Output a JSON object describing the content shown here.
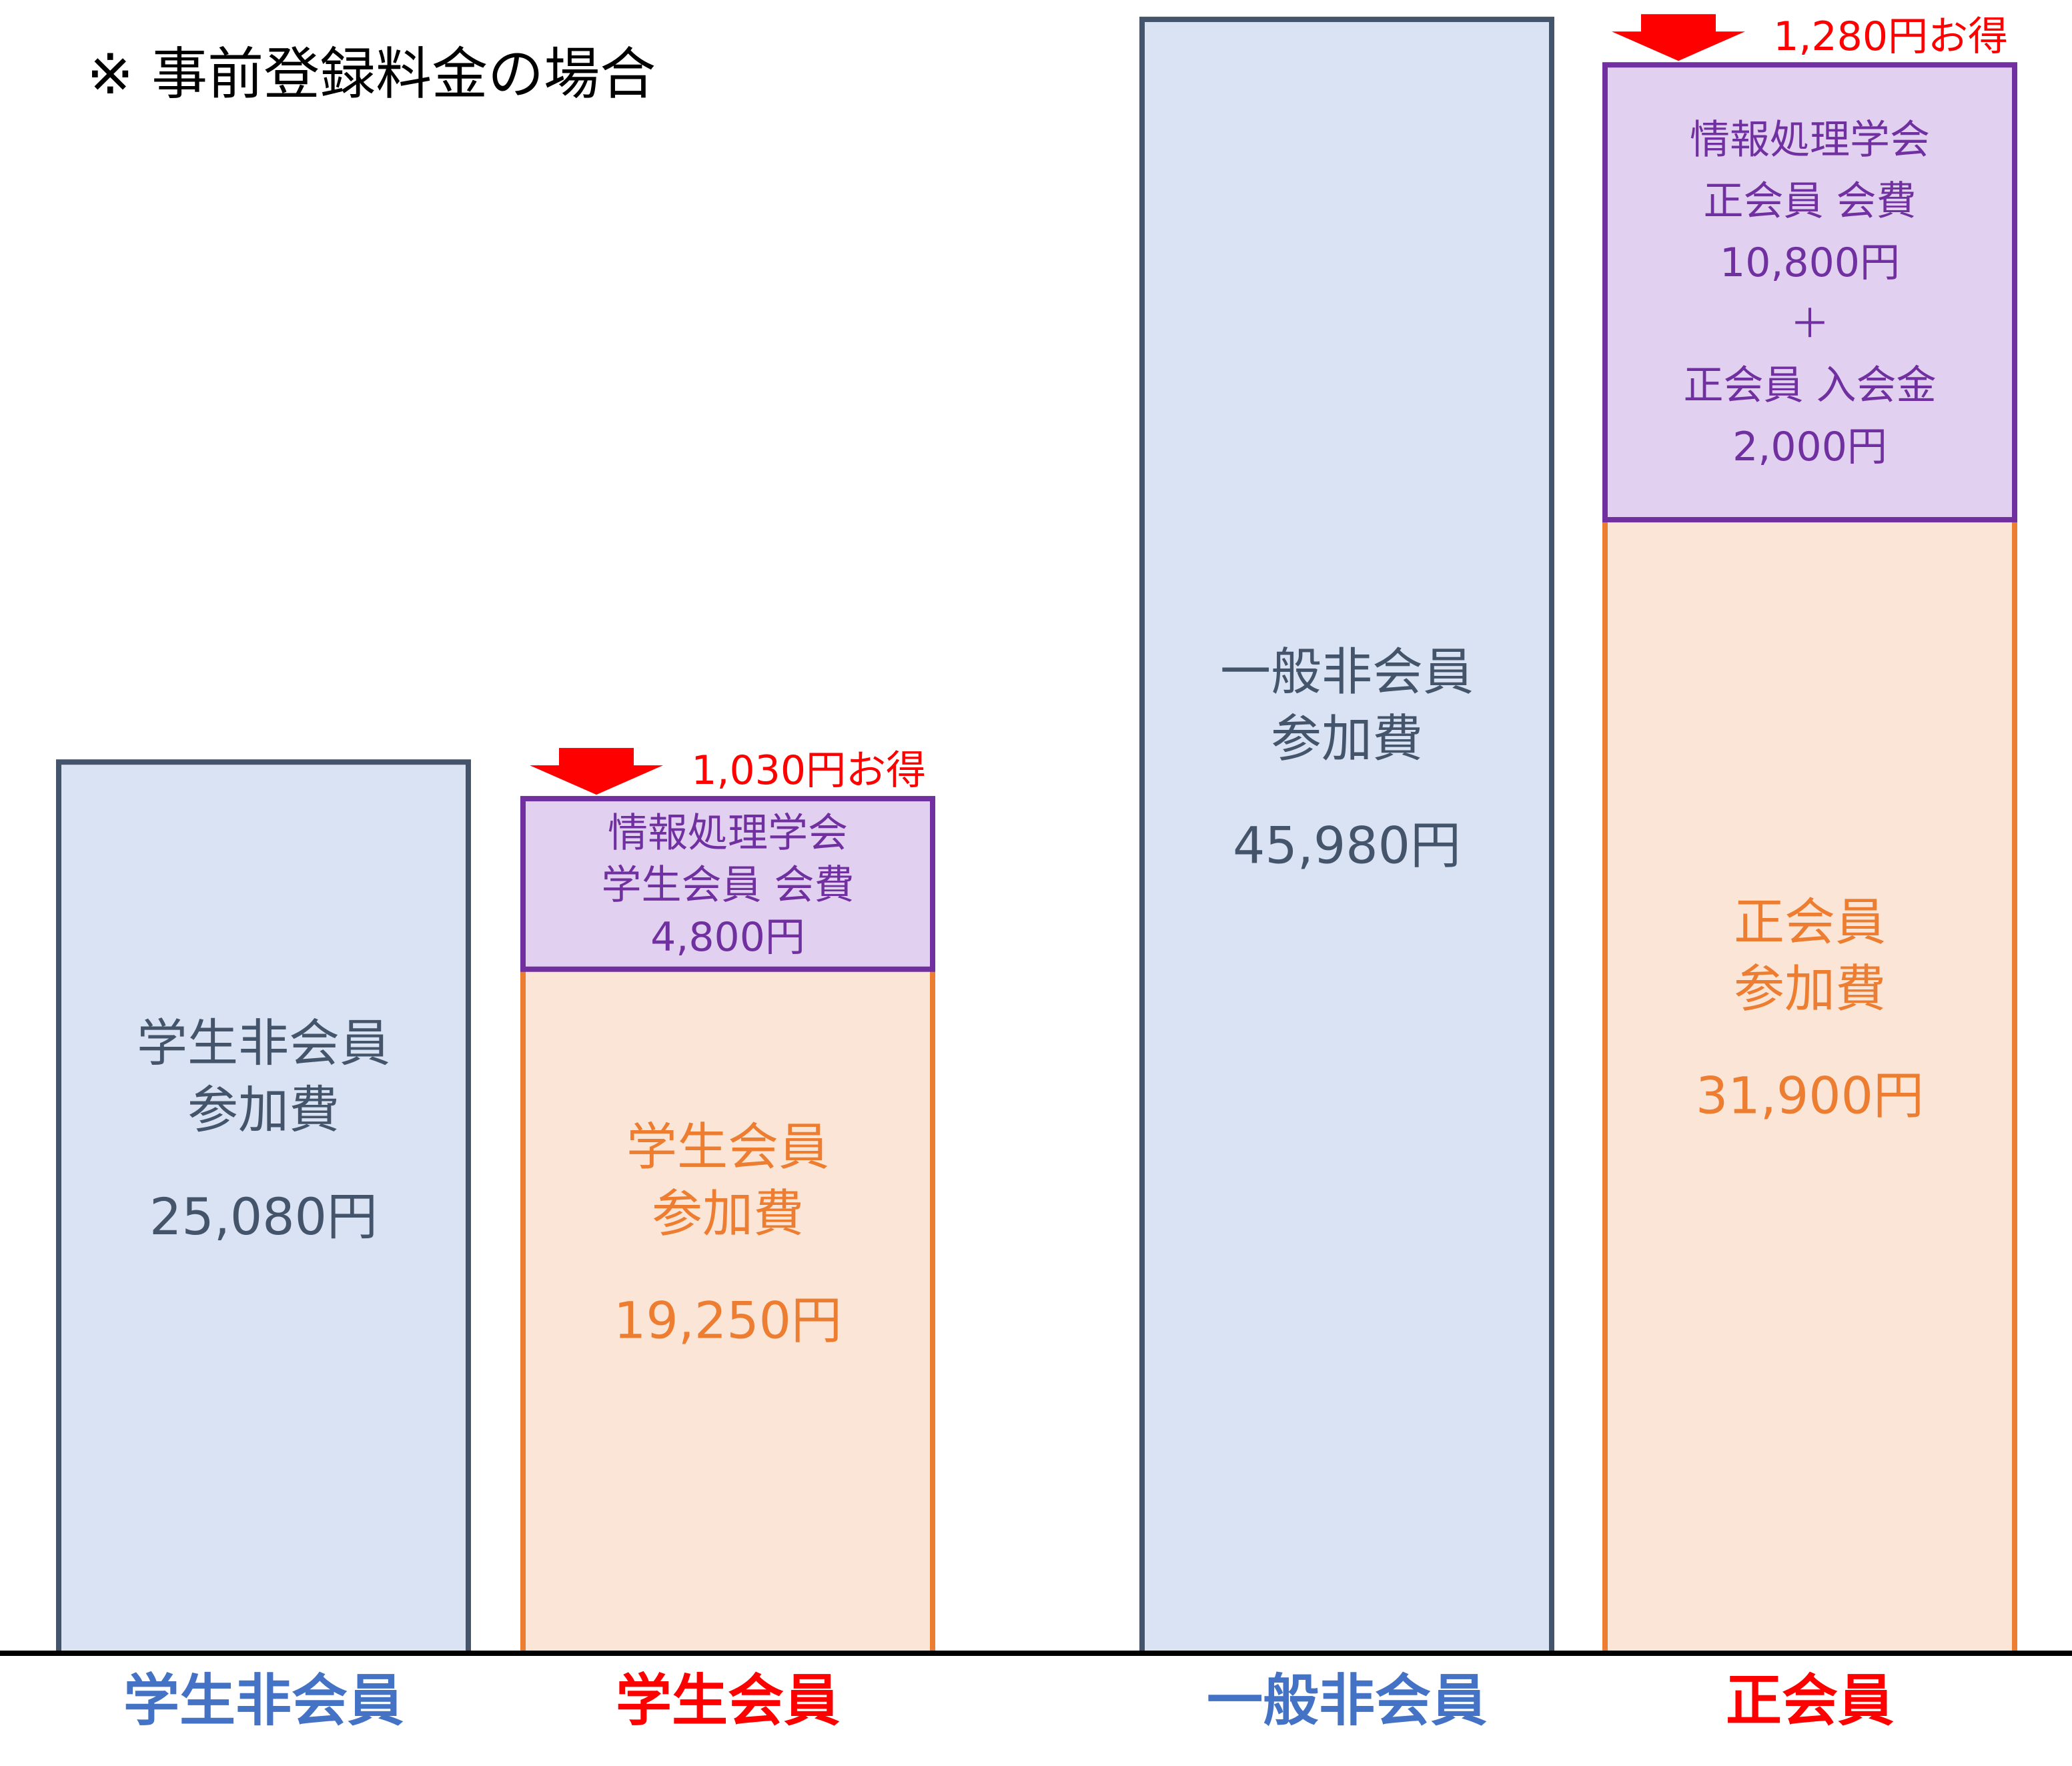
{
  "note": "※ 事前登録料金の場合",
  "chart_data": {
    "type": "bar",
    "unit": "円",
    "categories": [
      "学生非会員",
      "学生会員",
      "一般非会員",
      "正会員"
    ],
    "category_colors": [
      "#4472c4",
      "#ff0000",
      "#4472c4",
      "#ff0000"
    ],
    "series": [
      {
        "name": "参加費",
        "values": [
          25080,
          19250,
          45980,
          31900
        ]
      },
      {
        "name": "会費・入会金",
        "values": [
          0,
          4800,
          0,
          12800
        ]
      }
    ],
    "bars": [
      {
        "category": "学生非会員",
        "fee_label": [
          "学生非会員",
          "参加費"
        ],
        "fee_text": "25,080円",
        "style": "nonmember"
      },
      {
        "category": "学生会員",
        "fee_label": [
          "学生会員",
          "参加費"
        ],
        "fee_text": "19,250円",
        "style": "member",
        "membership_label": [
          "情報処理学会",
          "学生会員 会費",
          "4,800円"
        ],
        "saving": "1,030円お得"
      },
      {
        "category": "一般非会員",
        "fee_label": [
          "一般非会員",
          "参加費"
        ],
        "fee_text": "45,980円",
        "style": "nonmember"
      },
      {
        "category": "正会員",
        "fee_label": [
          "正会員",
          "参加費"
        ],
        "fee_text": "31,900円",
        "style": "member",
        "membership_label": [
          "情報処理学会",
          "正会員 会費",
          "10,800円",
          "＋",
          "正会員 入会金",
          "2,000円"
        ],
        "saving": "1,280円お得"
      }
    ],
    "colors": {
      "nonmember_fill": "#dae3f3",
      "nonmember_stroke": "#44546a",
      "nonmember_text": "#44546a",
      "member_fill": "#fbe5d6",
      "member_stroke": "#ed7d31",
      "member_text": "#ed7d31",
      "membership_fill": "#e2d0f1",
      "membership_stroke": "#7030a0",
      "membership_text": "#7030a0",
      "saving_text": "#ff0000",
      "arrow": "#ff0000",
      "axis": "#000000"
    }
  }
}
